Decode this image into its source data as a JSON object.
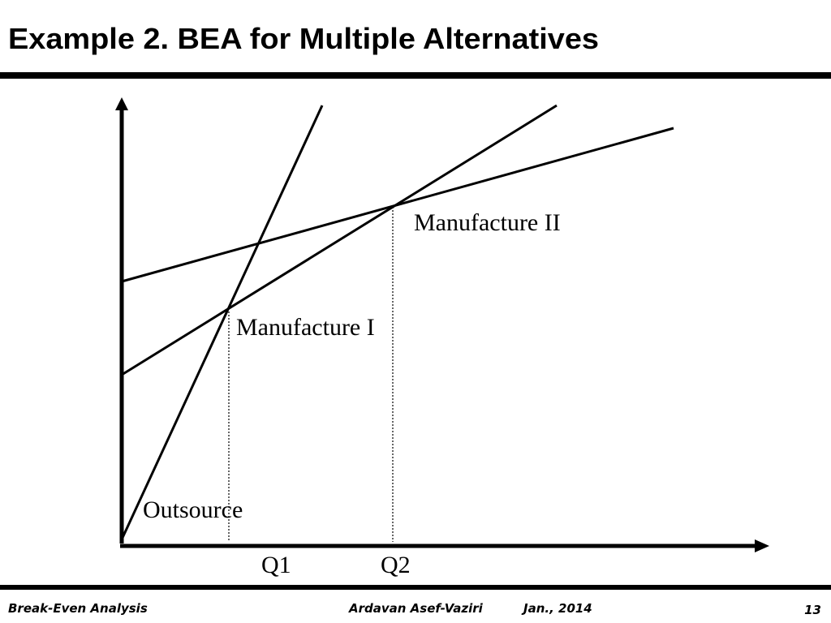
{
  "header": {
    "title": "Example 2. BEA for Multiple Alternatives"
  },
  "diagram": {
    "labels": [
      "Manufacture II",
      "Manufacture I",
      "Outsource"
    ],
    "x_marks": [
      "Q1",
      "Q2"
    ]
  },
  "footer": {
    "left": "Break-Even Analysis",
    "author": "Ardavan Asef-Vaziri",
    "date": "Jan., 2014",
    "page": "13"
  }
}
